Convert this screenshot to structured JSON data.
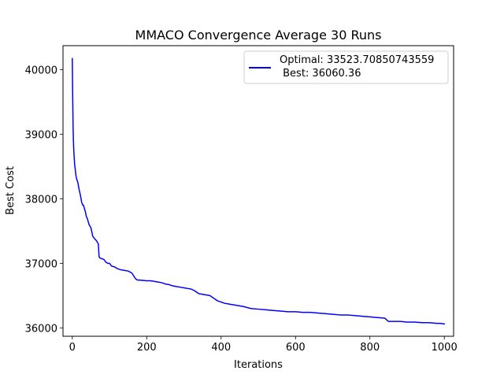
{
  "chart_data": {
    "type": "line",
    "title": "MMACO Convergence Average 30 Runs",
    "xlabel": "Iterations",
    "ylabel": "Best Cost",
    "xlim": [
      -25,
      1025
    ],
    "ylim": [
      35870,
      40370
    ],
    "xticks": [
      0,
      200,
      400,
      600,
      800,
      1000
    ],
    "yticks": [
      36000,
      37000,
      38000,
      39000,
      40000
    ],
    "xtick_labels": [
      "0",
      "200",
      "400",
      "600",
      "800",
      "1000"
    ],
    "ytick_labels": [
      "36000",
      "37000",
      "38000",
      "39000",
      "40000"
    ],
    "grid": false,
    "legend_position": "top-right",
    "legend_lines": [
      "Optimal: 33523.70850743559",
      " Best: 36060.36"
    ],
    "series": [
      {
        "color": "#0000ff",
        "x": [
          0,
          1,
          2,
          3,
          4,
          5,
          6,
          8,
          10,
          12,
          15,
          18,
          20,
          22,
          25,
          28,
          30,
          35,
          38,
          40,
          45,
          50,
          55,
          60,
          65,
          70,
          72,
          75,
          80,
          85,
          90,
          95,
          100,
          105,
          110,
          115,
          120,
          130,
          140,
          150,
          160,
          170,
          175,
          180,
          190,
          200,
          210,
          220,
          230,
          240,
          250,
          260,
          270,
          280,
          290,
          300,
          310,
          320,
          330,
          340,
          350,
          360,
          370,
          380,
          390,
          400,
          410,
          420,
          440,
          460,
          480,
          500,
          520,
          540,
          560,
          580,
          600,
          620,
          640,
          660,
          680,
          700,
          720,
          740,
          760,
          780,
          800,
          820,
          840,
          850,
          860,
          880,
          900,
          920,
          940,
          960,
          980,
          990,
          1000
        ],
        "y": [
          40170,
          39600,
          39150,
          38900,
          38750,
          38650,
          38550,
          38450,
          38350,
          38300,
          38250,
          38150,
          38100,
          38050,
          37950,
          37900,
          37900,
          37800,
          37720,
          37700,
          37600,
          37550,
          37420,
          37380,
          37350,
          37300,
          37100,
          37080,
          37070,
          37060,
          37020,
          37000,
          37000,
          36960,
          36950,
          36940,
          36920,
          36900,
          36890,
          36880,
          36850,
          36760,
          36740,
          36740,
          36735,
          36730,
          36730,
          36720,
          36710,
          36700,
          36680,
          36670,
          36650,
          36640,
          36630,
          36620,
          36610,
          36600,
          36570,
          36530,
          36520,
          36510,
          36500,
          36460,
          36420,
          36400,
          36380,
          36370,
          36350,
          36330,
          36300,
          36290,
          36280,
          36270,
          36260,
          36250,
          36250,
          36240,
          36240,
          36230,
          36220,
          36210,
          36200,
          36200,
          36190,
          36180,
          36170,
          36160,
          36150,
          36100,
          36100,
          36100,
          36090,
          36090,
          36080,
          36080,
          36070,
          36070,
          36060
        ]
      }
    ]
  }
}
